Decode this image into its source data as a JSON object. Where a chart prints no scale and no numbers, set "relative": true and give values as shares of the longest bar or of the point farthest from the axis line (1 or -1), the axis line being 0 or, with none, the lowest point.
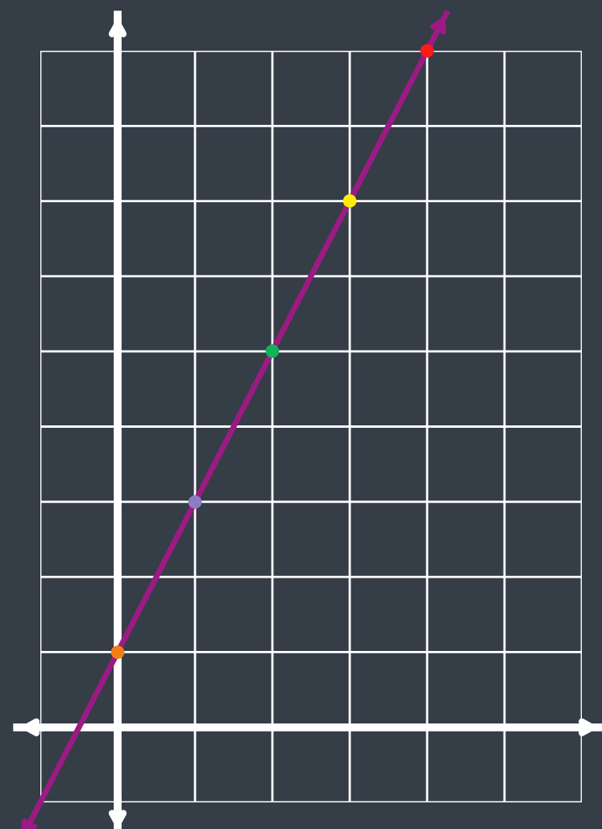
{
  "chart_data": {
    "type": "line",
    "relative": true,
    "grid": true,
    "legend": false,
    "marker": "circle",
    "line_style": "solid",
    "categories": [
      null,
      null,
      null,
      null,
      null,
      null,
      null,
      null
    ],
    "series": [
      {
        "color": "#9b1b82",
        "values": [
          -0.111,
          0.111,
          0.333,
          0.556,
          0.778,
          1,
          null,
          null
        ],
        "colors": [
          null,
          "#f57f17",
          "#8e7cc3",
          "#0fb45a",
          "#ffee00",
          "#ff1a1a",
          null,
          null
        ]
      }
    ]
  }
}
